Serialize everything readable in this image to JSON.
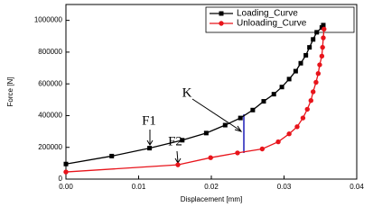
{
  "chart_data": {
    "type": "line",
    "x_label": "Displacement [mm]",
    "y_label": "Force [N]",
    "xlim": [
      0,
      0.04
    ],
    "ylim": [
      0,
      1100000
    ],
    "xticks": [
      {
        "value": 0,
        "label": "0.00"
      },
      {
        "value": 0.01,
        "label": "0.01"
      },
      {
        "value": 0.02,
        "label": "0.02"
      },
      {
        "value": 0.03,
        "label": "0.03"
      },
      {
        "value": 0.04,
        "label": "0.04"
      }
    ],
    "yticks": [
      0,
      200000,
      400000,
      600000,
      800000,
      1000000
    ],
    "legend": "top-right",
    "annotations": [
      "F1",
      "F2",
      "K"
    ],
    "series": [
      {
        "name": "Loading_Curve",
        "color": "#000000",
        "marker": "square",
        "x": [
          0,
          0.0063,
          0.0115,
          0.016,
          0.0193,
          0.0219,
          0.024,
          0.0257,
          0.0272,
          0.0286,
          0.0297,
          0.0307,
          0.0316,
          0.0323,
          0.033,
          0.0335,
          0.034,
          0.0345,
          0.0352,
          0.0354
        ],
        "values": [
          95000,
          145000,
          195000,
          245000,
          290000,
          340000,
          385000,
          435000,
          490000,
          535000,
          580000,
          630000,
          680000,
          730000,
          780000,
          830000,
          880000,
          925000,
          955000,
          970000
        ]
      },
      {
        "name": "Unloading_Curve",
        "color": "#e8141b",
        "marker": "circle",
        "x": [
          0,
          0.0154,
          0.0199,
          0.0236,
          0.027,
          0.0292,
          0.0307,
          0.0318,
          0.0326,
          0.0332,
          0.0337,
          0.034,
          0.0344,
          0.0347,
          0.0349,
          0.0352,
          0.0353,
          0.0354,
          0.0355
        ],
        "values": [
          45000,
          90000,
          135000,
          165000,
          190000,
          235000,
          285000,
          330000,
          385000,
          440000,
          495000,
          550000,
          610000,
          665000,
          720000,
          775000,
          830000,
          890000,
          945000
        ]
      }
    ]
  }
}
